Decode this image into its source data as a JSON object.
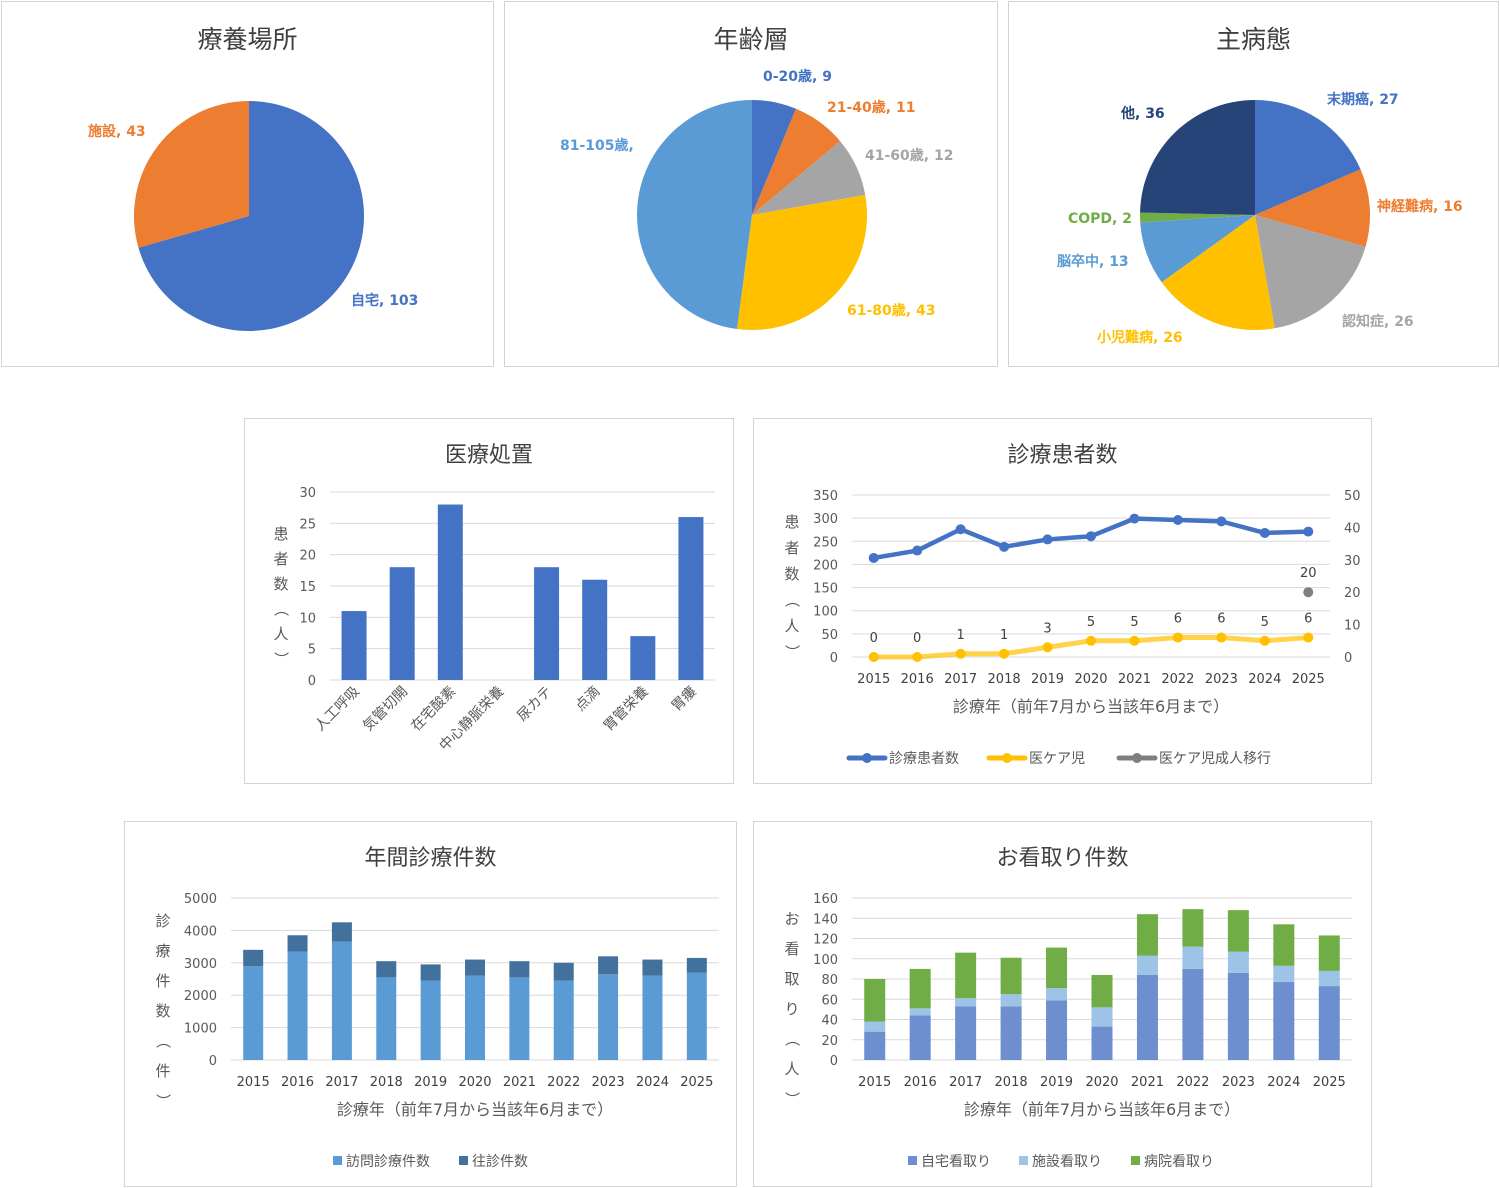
{
  "chart_data": [
    {
      "id": "place",
      "type": "pie",
      "title": "療養場所",
      "slices": [
        {
          "label": "自宅",
          "value": 103,
          "color": "#4472c4",
          "text": "自宅, 103"
        },
        {
          "label": "施設",
          "value": 43,
          "color": "#ed7d31",
          "text": "施設, 43"
        }
      ]
    },
    {
      "id": "age",
      "type": "pie",
      "title": "年齢層",
      "slices": [
        {
          "label": "0-20歳",
          "value": 9,
          "color": "#4472c4",
          "text": "0-20歳, 9"
        },
        {
          "label": "21-40歳",
          "value": 11,
          "color": "#ed7d31",
          "text": "21-40歳, 11"
        },
        {
          "label": "41-60歳",
          "value": 12,
          "color": "#a5a5a5",
          "text": "41-60歳, 12"
        },
        {
          "label": "61-80歳",
          "value": 43,
          "color": "#ffc000",
          "text": "61-80歳, 43"
        },
        {
          "label": "81-105歳",
          "value": 69,
          "color": "#5b9bd5",
          "text": "81-105歳,"
        }
      ]
    },
    {
      "id": "disease",
      "type": "pie",
      "title": "主病態",
      "slices": [
        {
          "label": "末期癌",
          "value": 27,
          "color": "#4472c4",
          "text": "末期癌, 27"
        },
        {
          "label": "神経難病",
          "value": 16,
          "color": "#ed7d31",
          "text": "神経難病, 16"
        },
        {
          "label": "認知症",
          "value": 26,
          "color": "#a5a5a5",
          "text": "認知症, 26"
        },
        {
          "label": "小児難病",
          "value": 26,
          "color": "#ffc000",
          "text": "小児難病, 26"
        },
        {
          "label": "脳卒中",
          "value": 13,
          "color": "#5b9bd5",
          "text": "脳卒中, 13"
        },
        {
          "label": "COPD",
          "value": 2,
          "color": "#70ad47",
          "text": "COPD, 2"
        },
        {
          "label": "他",
          "value": 36,
          "color": "#264478",
          "text": "他, 36"
        }
      ]
    },
    {
      "id": "treatment",
      "type": "bar",
      "title": "医療処置",
      "categories": [
        "人工呼吸",
        "気管切開",
        "在宅酸素",
        "中心静脈栄養",
        "尿カテ",
        "点滴",
        "胃管栄養",
        "胃瘻"
      ],
      "values": [
        11,
        18,
        28,
        0,
        18,
        16,
        7,
        26
      ],
      "ylabel": "患者数（人）",
      "ylim": [
        0,
        30
      ],
      "yticks": [
        0,
        5,
        10,
        15,
        20,
        25,
        30
      ],
      "color": "#4472c4"
    },
    {
      "id": "patients",
      "type": "line",
      "title": "診療患者数",
      "x": [
        "2015",
        "2016",
        "2017",
        "2018",
        "2019",
        "2020",
        "2021",
        "2022",
        "2023",
        "2024",
        "2025"
      ],
      "xlabel": "診療年（前年7月から当該年6月まで）",
      "ylabel": "患者数（人）",
      "ylim": [
        0,
        350
      ],
      "yticks": [
        0,
        50,
        100,
        150,
        200,
        250,
        300,
        350
      ],
      "y2lim": [
        0,
        50
      ],
      "y2ticks": [
        0,
        10,
        20,
        30,
        40,
        50
      ],
      "series": [
        {
          "name": "診療患者数",
          "axis": "left",
          "color": "#4472c4",
          "values": [
            214,
            230,
            276,
            238,
            254,
            261,
            299,
            296,
            293,
            268,
            271
          ]
        },
        {
          "name": "医ケア児",
          "axis": "right",
          "color": "#ffc000",
          "values": [
            0,
            0,
            1,
            1,
            3,
            5,
            5,
            6,
            6,
            5,
            6
          ],
          "labels": [
            "0",
            "0",
            "1",
            "1",
            "3",
            "5",
            "5",
            "6",
            "6",
            "5",
            "6"
          ]
        },
        {
          "name": "医ケア児成人移行",
          "axis": "right",
          "color": "#7f7f7f",
          "values": [
            null,
            null,
            null,
            null,
            null,
            null,
            null,
            null,
            null,
            null,
            20
          ],
          "labels": [
            "",
            "",
            "",
            "",
            "",
            "",
            "",
            "",
            "",
            "",
            "20"
          ]
        }
      ]
    },
    {
      "id": "visits",
      "type": "bar",
      "stacked": true,
      "title": "年間診療件数",
      "x": [
        "2015",
        "2016",
        "2017",
        "2018",
        "2019",
        "2020",
        "2021",
        "2022",
        "2023",
        "2024",
        "2025"
      ],
      "xlabel": "診療年（前年7月から当該年6月まで）",
      "ylabel": "診療件数（件）",
      "ylim": [
        0,
        5000
      ],
      "yticks": [
        0,
        1000,
        2000,
        3000,
        4000,
        5000
      ],
      "series": [
        {
          "name": "訪問診療件数",
          "color": "#5b9bd5",
          "values": [
            2900,
            3350,
            3650,
            2550,
            2450,
            2600,
            2550,
            2450,
            2650,
            2600,
            2700
          ]
        },
        {
          "name": "往診件数",
          "color": "#41719c",
          "values": [
            500,
            500,
            600,
            500,
            500,
            500,
            500,
            550,
            550,
            500,
            450
          ]
        }
      ]
    },
    {
      "id": "mitori",
      "type": "bar",
      "stacked": true,
      "title": "お看取り件数",
      "x": [
        "2015",
        "2016",
        "2017",
        "2018",
        "2019",
        "2020",
        "2021",
        "2022",
        "2023",
        "2024",
        "2025"
      ],
      "xlabel": "診療年（前年7月から当該年6月まで）",
      "ylabel": "お看取り（人）",
      "ylim": [
        0,
        160
      ],
      "yticks": [
        0,
        20,
        40,
        60,
        80,
        100,
        120,
        140,
        160
      ],
      "series": [
        {
          "name": "自宅看取り",
          "color": "#6d8ecf",
          "values": [
            28,
            44,
            53,
            53,
            59,
            33,
            84,
            90,
            86,
            77,
            73
          ]
        },
        {
          "name": "施設看取り",
          "color": "#9dc3e6",
          "values": [
            10,
            7,
            8,
            12,
            12,
            19,
            19,
            22,
            21,
            16,
            15
          ]
        },
        {
          "name": "病院看取り",
          "color": "#70ad47",
          "values": [
            42,
            39,
            45,
            36,
            40,
            32,
            41,
            37,
            41,
            41,
            35
          ]
        }
      ]
    }
  ]
}
